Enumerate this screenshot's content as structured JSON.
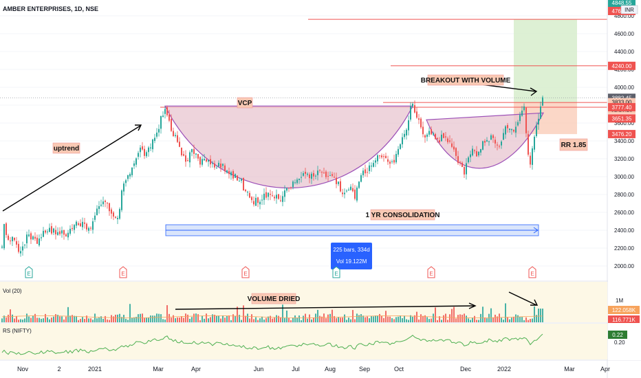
{
  "header": {
    "title": "AMBER ENTERPRISES, 1D, NSE",
    "currency": "INR"
  },
  "colors": {
    "up": "#26a69a",
    "down": "#ef5350",
    "pattern_fill": "#e8c6d0",
    "pattern_line": "#9c4fb7",
    "target_zone": "#d5ecc9",
    "stop_zone": "#f9c9b4",
    "rs_line": "#4caf50",
    "highlight": "#2962ff"
  },
  "chart_data": {
    "type": "candlestick",
    "ylim": [
      1900,
      4900
    ],
    "price_ticks": [
      2000,
      2200,
      2400,
      2600,
      2800,
      3000,
      3200,
      3400,
      3600,
      3800,
      4000,
      4200,
      4400,
      4600,
      4800
    ],
    "price_tick_labels": [
      "2000.00",
      "2200.00",
      "2400.00",
      "2600.00",
      "2800.00",
      "3000.00",
      "3200.00",
      "3400.00",
      "3600.00",
      "3800.00",
      "4000.00",
      "4200.00",
      "4400.00",
      "4600.00",
      "4800.00"
    ],
    "x_axis_labels": [
      "Nov",
      "2",
      "2021",
      "Mar",
      "Apr",
      "Jun",
      "Jul",
      "Aug",
      "Sep",
      "Oct",
      "Dec",
      "2022",
      "Mar",
      "Apr"
    ],
    "price_markers": [
      {
        "value": 4848.55,
        "label": "4848.55",
        "color": "#26a69a"
      },
      {
        "value": 4761.0,
        "label": "4761.00",
        "color": "#ef5350"
      },
      {
        "value": 4240.0,
        "label": "4240.00",
        "color": "#ef5350"
      },
      {
        "value": 3882.45,
        "label": "3882.45",
        "color": "#5d606b"
      },
      {
        "value": 3833.0,
        "label": "3833.00",
        "color": "#f9c9b4"
      },
      {
        "value": 3822.0,
        "label": "02:16:23",
        "color": "#f9c9b4"
      },
      {
        "value": 3777.4,
        "label": "3777.40",
        "color": "#ef5350"
      },
      {
        "value": 3651.35,
        "label": "3651.35",
        "color": "#ef5350"
      },
      {
        "value": 3476.2,
        "label": "3476.20",
        "color": "#ef5350"
      }
    ],
    "levels": {
      "resistance_top": 4761.0,
      "target_1": 4240.0,
      "pivot": 3777.4,
      "last": 3882.45,
      "entry": 3833.0,
      "stop": 3476.2,
      "cup_rim": 3790,
      "cup_bottom": 2760
    },
    "close_path": [
      [
        0,
        2000
      ],
      [
        6,
        2450
      ],
      [
        12,
        2250
      ],
      [
        20,
        2300
      ],
      [
        30,
        2150
      ],
      [
        40,
        2350
      ],
      [
        55,
        2280
      ],
      [
        70,
        2420
      ],
      [
        85,
        2350
      ],
      [
        100,
        2380
      ],
      [
        115,
        2500
      ],
      [
        130,
        2400
      ],
      [
        140,
        2600
      ],
      [
        150,
        2750
      ],
      [
        160,
        2600
      ],
      [
        170,
        2500
      ],
      [
        180,
        2950
      ],
      [
        190,
        3000
      ],
      [
        200,
        3300
      ],
      [
        210,
        3250
      ],
      [
        220,
        3350
      ],
      [
        230,
        3550
      ],
      [
        240,
        3780
      ],
      [
        250,
        3500
      ],
      [
        260,
        3350
      ],
      [
        270,
        3150
      ],
      [
        280,
        3300
      ],
      [
        290,
        3150
      ],
      [
        300,
        3200
      ],
      [
        310,
        3100
      ],
      [
        320,
        3150
      ],
      [
        330,
        3050
      ],
      [
        340,
        3000
      ],
      [
        350,
        2950
      ],
      [
        360,
        2800
      ],
      [
        370,
        2720
      ],
      [
        380,
        2750
      ],
      [
        390,
        2800
      ],
      [
        400,
        2760
      ],
      [
        410,
        2780
      ],
      [
        420,
        2850
      ],
      [
        430,
        2950
      ],
      [
        440,
        3050
      ],
      [
        450,
        3000
      ],
      [
        460,
        3050
      ],
      [
        470,
        3000
      ],
      [
        480,
        3050
      ],
      [
        490,
        2950
      ],
      [
        500,
        2800
      ],
      [
        510,
        2900
      ],
      [
        515,
        2730
      ],
      [
        520,
        2950
      ],
      [
        530,
        3050
      ],
      [
        540,
        3150
      ],
      [
        550,
        3250
      ],
      [
        560,
        3200
      ],
      [
        570,
        3150
      ],
      [
        580,
        3300
      ],
      [
        590,
        3500
      ],
      [
        598,
        3820
      ],
      [
        605,
        3700
      ],
      [
        615,
        3450
      ],
      [
        625,
        3500
      ],
      [
        635,
        3400
      ],
      [
        645,
        3450
      ],
      [
        655,
        3350
      ],
      [
        665,
        3200
      ],
      [
        675,
        3050
      ],
      [
        685,
        3300
      ],
      [
        695,
        3250
      ],
      [
        705,
        3400
      ],
      [
        715,
        3450
      ],
      [
        725,
        3350
      ],
      [
        735,
        3550
      ],
      [
        745,
        3500
      ],
      [
        755,
        3650
      ],
      [
        762,
        3750
      ],
      [
        770,
        3100
      ],
      [
        775,
        3350
      ],
      [
        780,
        3550
      ],
      [
        785,
        3700
      ],
      [
        789,
        3880
      ]
    ],
    "volume_label": "Vol (20)",
    "volume_markers": [
      {
        "label": "122.058K",
        "color": "#f7a35c"
      },
      {
        "label": "116.771K",
        "color": "#ef5350"
      }
    ],
    "volume_tick": "1M",
    "rs_label": "RS (NIFTY)",
    "rs_values": [
      "0.22",
      "0.20"
    ],
    "annotations": {
      "uptrend": "uptrend",
      "vcp": "VCP",
      "breakout": "BREAKOUT WITH VOLUME",
      "rr": "RR 1.85",
      "consolidation": "1 YR CONSOLIDATION",
      "volume_dried": "VOLUME DRIED"
    },
    "range_tooltip": {
      "bars": "225 bars, 334d",
      "vol": "Vol 19.122M"
    },
    "event_markers": [
      "E",
      "E",
      "E",
      "E",
      "E",
      "E",
      "E"
    ]
  }
}
